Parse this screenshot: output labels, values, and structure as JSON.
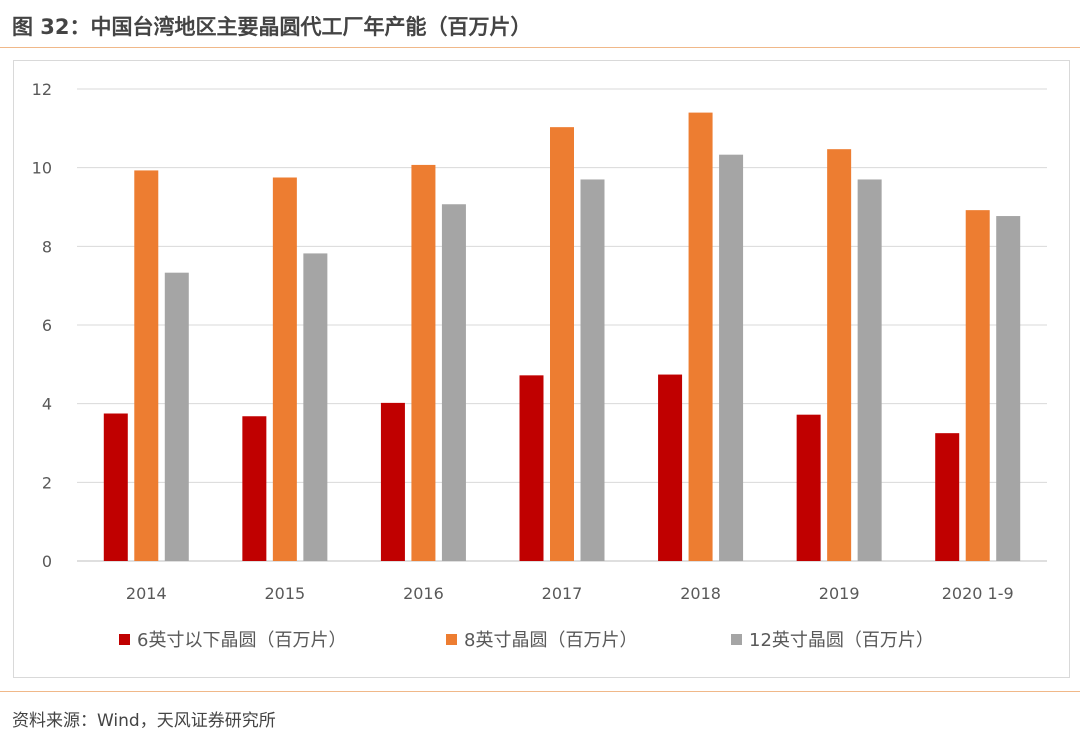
{
  "header": {
    "title": "图 32：中国台湾地区主要晶圆代工厂年产能（百万片）"
  },
  "footer": {
    "source": "资料来源：Wind，天风证券研究所"
  },
  "chart_data": {
    "type": "bar",
    "categories": [
      "2014",
      "2015",
      "2016",
      "2017",
      "2018",
      "2019",
      "2020 1-9"
    ],
    "series": [
      {
        "name": "6英寸以下晶圆（百万片）",
        "color": "#c00000",
        "values": [
          3.75,
          3.68,
          4.02,
          4.72,
          4.74,
          3.72,
          3.25
        ]
      },
      {
        "name": "8英寸晶圆（百万片）",
        "color": "#ed7d31",
        "values": [
          9.93,
          9.75,
          10.07,
          11.03,
          11.4,
          10.47,
          8.92
        ]
      },
      {
        "name": "12英寸晶圆（百万片）",
        "color": "#a5a5a5",
        "values": [
          7.33,
          7.82,
          9.07,
          9.7,
          10.33,
          9.7,
          8.77
        ]
      }
    ],
    "yticks": [
      "0",
      "2",
      "4",
      "6",
      "8",
      "10",
      "12"
    ],
    "ylim": [
      0,
      12
    ],
    "grid": true,
    "legend_position": "bottom"
  }
}
